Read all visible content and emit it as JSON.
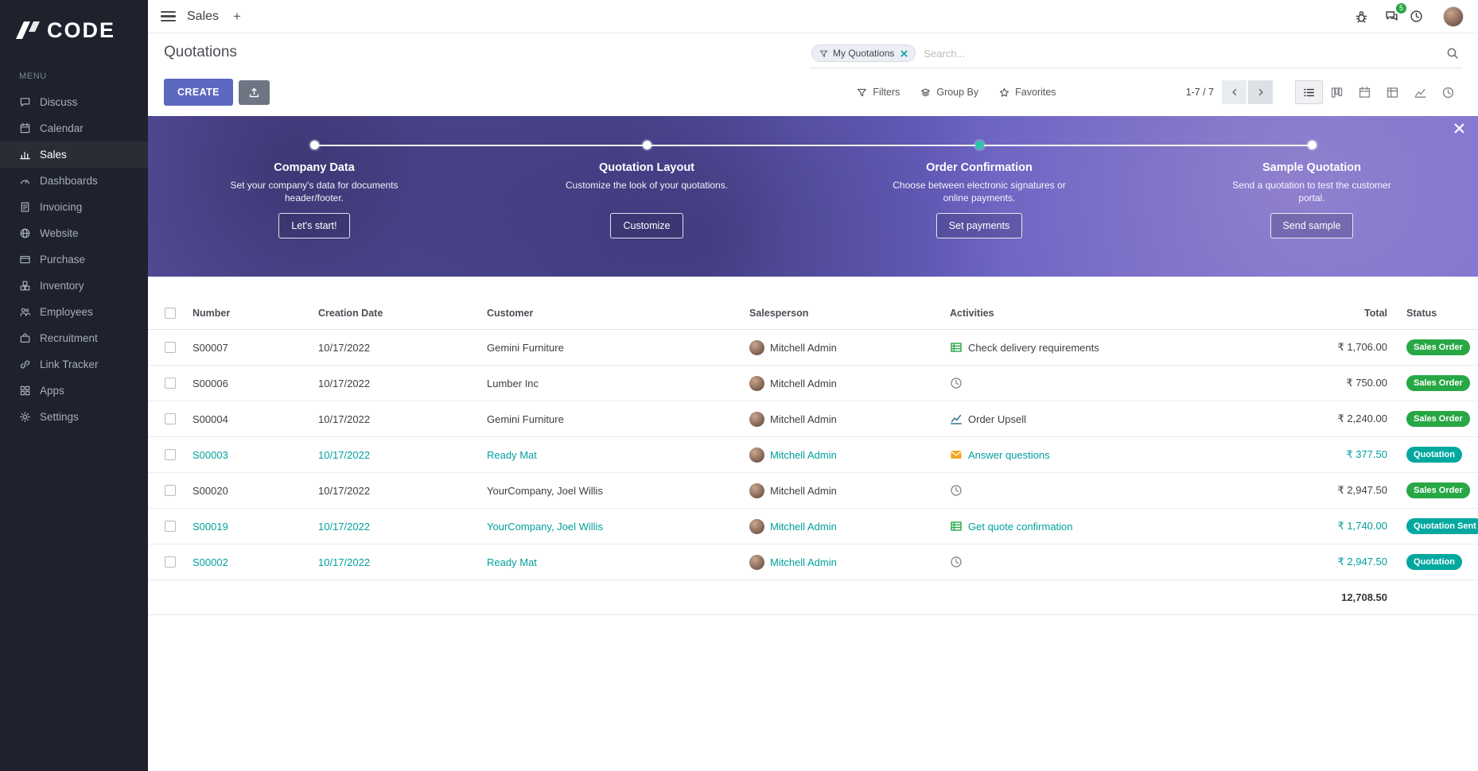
{
  "colors": {
    "accent": "#5c68c0",
    "link": "#00a09d",
    "success": "#28a745",
    "info": "#00a8a0",
    "sidebar_bg": "#1e222c",
    "banner_purple": "#6a64c2"
  },
  "brand": {
    "name": "CODE"
  },
  "topbar": {
    "app_title": "Sales",
    "add_tab_label": "+",
    "messages_badge": "5"
  },
  "sidebar": {
    "menu_label": "MENU",
    "items": [
      {
        "label": "Discuss",
        "icon": "discuss"
      },
      {
        "label": "Calendar",
        "icon": "calendar"
      },
      {
        "label": "Sales",
        "icon": "sales",
        "active": true
      },
      {
        "label": "Dashboards",
        "icon": "dashboards"
      },
      {
        "label": "Invoicing",
        "icon": "invoicing"
      },
      {
        "label": "Website",
        "icon": "website"
      },
      {
        "label": "Purchase",
        "icon": "purchase"
      },
      {
        "label": "Inventory",
        "icon": "inventory"
      },
      {
        "label": "Employees",
        "icon": "employees"
      },
      {
        "label": "Recruitment",
        "icon": "recruitment"
      },
      {
        "label": "Link Tracker",
        "icon": "link"
      },
      {
        "label": "Apps",
        "icon": "apps"
      },
      {
        "label": "Settings",
        "icon": "settings"
      }
    ]
  },
  "control_panel": {
    "title": "Quotations",
    "search": {
      "filter_tag": "My Quotations",
      "placeholder": "Search..."
    },
    "create_label": "CREATE",
    "filters_label": "Filters",
    "group_by_label": "Group By",
    "favorites_label": "Favorites",
    "pager": "1-7 / 7"
  },
  "banner": {
    "steps": [
      {
        "title": "Company Data",
        "desc": "Set your company's data for documents header/footer.",
        "button": "Let's start!",
        "dot": "white"
      },
      {
        "title": "Quotation Layout",
        "desc": "Customize the look of your quotations.",
        "button": "Customize",
        "dot": "white"
      },
      {
        "title": "Order Confirmation",
        "desc": "Choose between electronic signatures or online payments.",
        "button": "Set payments",
        "dot": "teal"
      },
      {
        "title": "Sample Quotation",
        "desc": "Send a quotation to test the customer portal.",
        "button": "Send sample",
        "dot": "white"
      }
    ]
  },
  "table": {
    "headers": {
      "number": "Number",
      "date": "Creation Date",
      "customer": "Customer",
      "salesperson": "Salesperson",
      "activities": "Activities",
      "total": "Total",
      "status": "Status"
    },
    "rows": [
      {
        "number": "S00007",
        "date": "10/17/2022",
        "customer": "Gemini Furniture",
        "salesperson": "Mitchell Admin",
        "activity": "Check delivery requirements",
        "activity_icon": "tasks",
        "total": "₹ 1,706.00",
        "status": "Sales Order",
        "status_type": "success",
        "link_style": false
      },
      {
        "number": "S00006",
        "date": "10/17/2022",
        "customer": "Lumber Inc",
        "salesperson": "Mitchell Admin",
        "activity": "",
        "activity_icon": "clock",
        "total": "₹ 750.00",
        "status": "Sales Order",
        "status_type": "success",
        "link_style": false
      },
      {
        "number": "S00004",
        "date": "10/17/2022",
        "customer": "Gemini Furniture",
        "salesperson": "Mitchell Admin",
        "activity": "Order Upsell",
        "activity_icon": "chart",
        "total": "₹ 2,240.00",
        "status": "Sales Order",
        "status_type": "success",
        "link_style": false
      },
      {
        "number": "S00003",
        "date": "10/17/2022",
        "customer": "Ready Mat",
        "salesperson": "Mitchell Admin",
        "activity": "Answer questions",
        "activity_icon": "envelope",
        "total": "₹ 377.50",
        "status": "Quotation",
        "status_type": "info",
        "link_style": true
      },
      {
        "number": "S00020",
        "date": "10/17/2022",
        "customer": "YourCompany, Joel Willis",
        "salesperson": "Mitchell Admin",
        "activity": "",
        "activity_icon": "clock",
        "total": "₹ 2,947.50",
        "status": "Sales Order",
        "status_type": "success",
        "link_style": false
      },
      {
        "number": "S00019",
        "date": "10/17/2022",
        "customer": "YourCompany, Joel Willis",
        "salesperson": "Mitchell Admin",
        "activity": "Get quote confirmation",
        "activity_icon": "tasks",
        "total": "₹ 1,740.00",
        "status": "Quotation Sent",
        "status_type": "info",
        "link_style": true
      },
      {
        "number": "S00002",
        "date": "10/17/2022",
        "customer": "Ready Mat",
        "salesperson": "Mitchell Admin",
        "activity": "",
        "activity_icon": "clock",
        "total": "₹ 2,947.50",
        "status": "Quotation",
        "status_type": "info",
        "link_style": true
      }
    ],
    "footer_total": "12,708.50"
  }
}
